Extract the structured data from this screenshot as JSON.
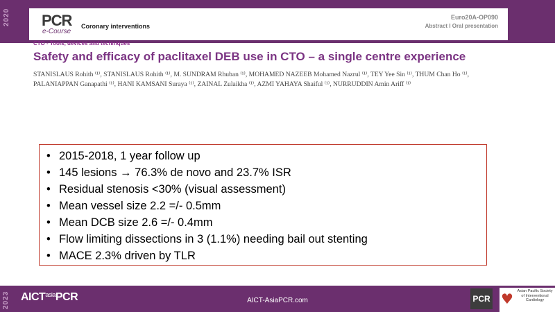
{
  "header": {
    "year": "2020",
    "logo": "PCR",
    "logo_sub": "e-Course",
    "section": "Coronary interventions",
    "abstract_code": "Euro20A-OP090",
    "abstract_type": "Abstract I Oral presentation"
  },
  "abstract": {
    "category": "CTO - Tools, devices and techniques",
    "title": "Safety and efficacy of paclitaxel DEB use in CTO – a single centre experience",
    "authors": "STANISLAUS Rohith ⁽¹⁾, STANISLAUS Rohith ⁽¹⁾, M. SUNDRAM Rhuban ⁽¹⁾, MOHAMED NAZEEB Mohamed Nazrul ⁽¹⁾, TEY Yee Sin ⁽¹⁾, THUM Chan Ho ⁽¹⁾, PALANIAPPAN Ganapathi ⁽¹⁾, HANI KAMSANI Suraya ⁽¹⁾, ZAINAL Zulaikha ⁽¹⁾, AZMI YAHAYA Shaiful ⁽¹⁾, NURRUDDIN Amin Ariff ⁽¹⁾"
  },
  "bullets": [
    "2015-2018, 1 year follow up",
    "145 lesions → 76.3% de novo and 23.7% ISR",
    "Residual stenosis <30% (visual assessment)",
    "Mean vessel size 2.2 =/- 0.5mm",
    "Mean DCB size 2.6 =/- 0.4mm",
    "Flow limiting dissections in 3 (1.1%) needing bail out stenting",
    "MACE 2.3% driven by TLR"
  ],
  "footer": {
    "year": "2023",
    "logo_main": "AICT",
    "logo_small": "asia",
    "logo_pcr": "PCR",
    "url": "AICT-AsiaPCR.com",
    "pcr_badge": "PCR",
    "apsic_text": "Asian Pacific Society of Interventional Cardiology"
  },
  "colors": {
    "brand_purple": "#6b2f6e",
    "title_purple": "#7b3483",
    "box_border": "#c0392b"
  }
}
